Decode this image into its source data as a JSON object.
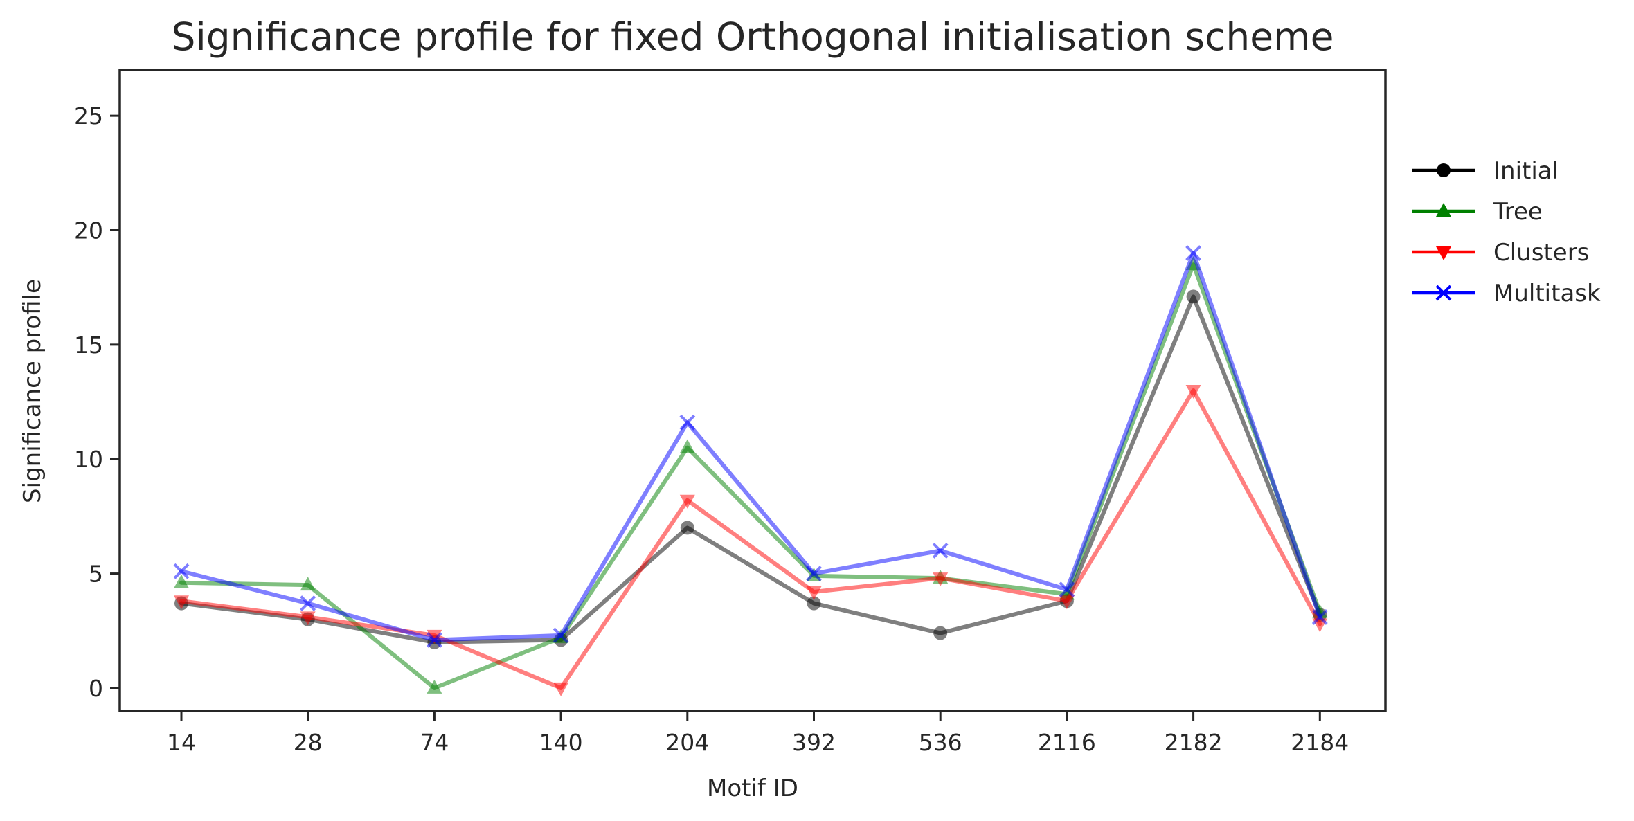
{
  "chart_data": {
    "type": "line",
    "title": "Significance profile for fixed Orthogonal initialisation scheme",
    "xlabel": "Motif ID",
    "ylabel": "Significance profile",
    "categories": [
      "14",
      "28",
      "74",
      "140",
      "204",
      "392",
      "536",
      "2116",
      "2182",
      "2184"
    ],
    "ylim": [
      -1,
      27
    ],
    "yticks": [
      0,
      5,
      10,
      15,
      20,
      25
    ],
    "grid": false,
    "legend_position": "outside-right",
    "series": [
      {
        "name": "Initial",
        "color": "#000000",
        "marker": "circle",
        "values": [
          3.7,
          3.0,
          2.0,
          2.1,
          7.0,
          3.7,
          2.4,
          3.8,
          17.1,
          3.2
        ]
      },
      {
        "name": "Tree",
        "color": "#008000",
        "marker": "triangle-up",
        "values": [
          4.6,
          4.5,
          0.0,
          2.2,
          10.5,
          4.9,
          4.8,
          4.1,
          18.5,
          3.3
        ]
      },
      {
        "name": "Clusters",
        "color": "#ff0000",
        "marker": "triangle-down",
        "values": [
          3.8,
          3.1,
          2.3,
          0.0,
          8.2,
          4.2,
          4.8,
          3.8,
          13.0,
          2.8
        ]
      },
      {
        "name": "Multitask",
        "color": "#0000ff",
        "marker": "x",
        "values": [
          5.1,
          3.7,
          2.1,
          2.3,
          11.6,
          5.0,
          6.0,
          4.3,
          19.0,
          3.1
        ]
      }
    ]
  }
}
